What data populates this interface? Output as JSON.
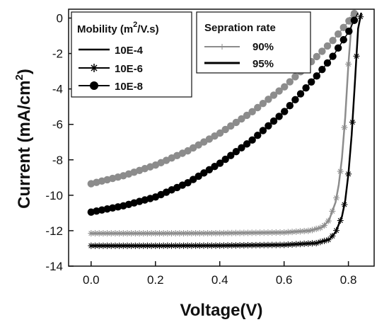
{
  "chart_data": {
    "type": "line",
    "xlabel": "Voltage(V)",
    "ylabel_main": "Current (mA/cm",
    "ylabel_sup": "2",
    "ylabel_close": ")",
    "xlim": [
      -0.07,
      0.88
    ],
    "ylim": [
      -14,
      0.5
    ],
    "xticks": [
      0.0,
      0.2,
      0.4,
      0.6,
      0.8
    ],
    "xtick_labels": [
      "0.0",
      "0.2",
      "0.4",
      "0.6",
      "0.8"
    ],
    "yticks": [
      0,
      -2,
      -4,
      -6,
      -8,
      -10,
      -12,
      -14
    ],
    "ytick_labels": [
      "0",
      "-2",
      "-4",
      "-6",
      "-8",
      "-10",
      "-12",
      "-14"
    ],
    "legend_mobility": {
      "title_main": "Mobility (m",
      "title_sup": "2",
      "title_rest": "/V.s)",
      "items": [
        {
          "label": "10E-4",
          "marker": "line"
        },
        {
          "label": "10E-6",
          "marker": "star"
        },
        {
          "label": "10E-8",
          "marker": "circle"
        }
      ]
    },
    "legend_separation": {
      "title": "Sepration rate",
      "items": [
        {
          "label": "90%",
          "color": "#8c8c8c"
        },
        {
          "label": "95%",
          "color": "#000000"
        }
      ]
    },
    "series": [
      {
        "separation": "90%",
        "mobility": "10E-4",
        "marker": "line",
        "color": "#8c8c8c",
        "x": [
          0.0,
          0.2,
          0.4,
          0.6,
          0.68,
          0.72,
          0.74,
          0.76,
          0.77,
          0.78,
          0.79,
          0.8,
          0.81,
          0.815
        ],
        "y": [
          -12.15,
          -12.15,
          -12.14,
          -12.1,
          -12.0,
          -11.8,
          -11.4,
          -10.4,
          -9.4,
          -7.9,
          -5.6,
          -2.6,
          -0.2,
          0.3
        ]
      },
      {
        "separation": "95%",
        "mobility": "10E-4",
        "marker": "line",
        "color": "#000000",
        "x": [
          0.0,
          0.2,
          0.4,
          0.6,
          0.7,
          0.74,
          0.76,
          0.78,
          0.79,
          0.8,
          0.81,
          0.82,
          0.83,
          0.84
        ],
        "y": [
          -12.85,
          -12.85,
          -12.84,
          -12.8,
          -12.7,
          -12.5,
          -12.1,
          -11.2,
          -10.3,
          -8.8,
          -6.6,
          -3.7,
          -0.6,
          0.3
        ]
      },
      {
        "separation": "90%",
        "mobility": "10E-6",
        "marker": "star",
        "color": "#8c8c8c",
        "x": [
          0.0,
          0.2,
          0.4,
          0.6,
          0.68,
          0.72,
          0.74,
          0.76,
          0.77,
          0.78,
          0.79,
          0.8,
          0.81,
          0.815
        ],
        "y": [
          -12.15,
          -12.15,
          -12.14,
          -12.1,
          -12.0,
          -11.8,
          -11.4,
          -10.4,
          -9.4,
          -7.9,
          -5.6,
          -2.6,
          -0.2,
          0.3
        ]
      },
      {
        "separation": "95%",
        "mobility": "10E-6",
        "marker": "star",
        "color": "#000000",
        "x": [
          0.0,
          0.2,
          0.4,
          0.6,
          0.7,
          0.74,
          0.76,
          0.78,
          0.79,
          0.8,
          0.81,
          0.82,
          0.83,
          0.84
        ],
        "y": [
          -12.85,
          -12.85,
          -12.84,
          -12.8,
          -12.7,
          -12.5,
          -12.1,
          -11.2,
          -10.3,
          -8.8,
          -6.6,
          -3.7,
          -0.6,
          0.3
        ]
      },
      {
        "separation": "90%",
        "mobility": "10E-8",
        "marker": "circle",
        "color": "#8c8c8c",
        "x": [
          0.0,
          0.1,
          0.2,
          0.3,
          0.4,
          0.5,
          0.6,
          0.7,
          0.75,
          0.8,
          0.82
        ],
        "y": [
          -9.35,
          -8.9,
          -8.3,
          -7.5,
          -6.5,
          -5.3,
          -3.9,
          -2.2,
          -1.3,
          -0.2,
          0.3
        ]
      },
      {
        "separation": "95%",
        "mobility": "10E-8",
        "marker": "circle",
        "color": "#000000",
        "x": [
          0.0,
          0.1,
          0.2,
          0.3,
          0.4,
          0.5,
          0.6,
          0.7,
          0.75,
          0.8,
          0.83
        ],
        "y": [
          -10.95,
          -10.6,
          -10.1,
          -9.3,
          -8.2,
          -6.9,
          -5.3,
          -3.3,
          -2.2,
          -0.8,
          0.3
        ]
      }
    ]
  }
}
